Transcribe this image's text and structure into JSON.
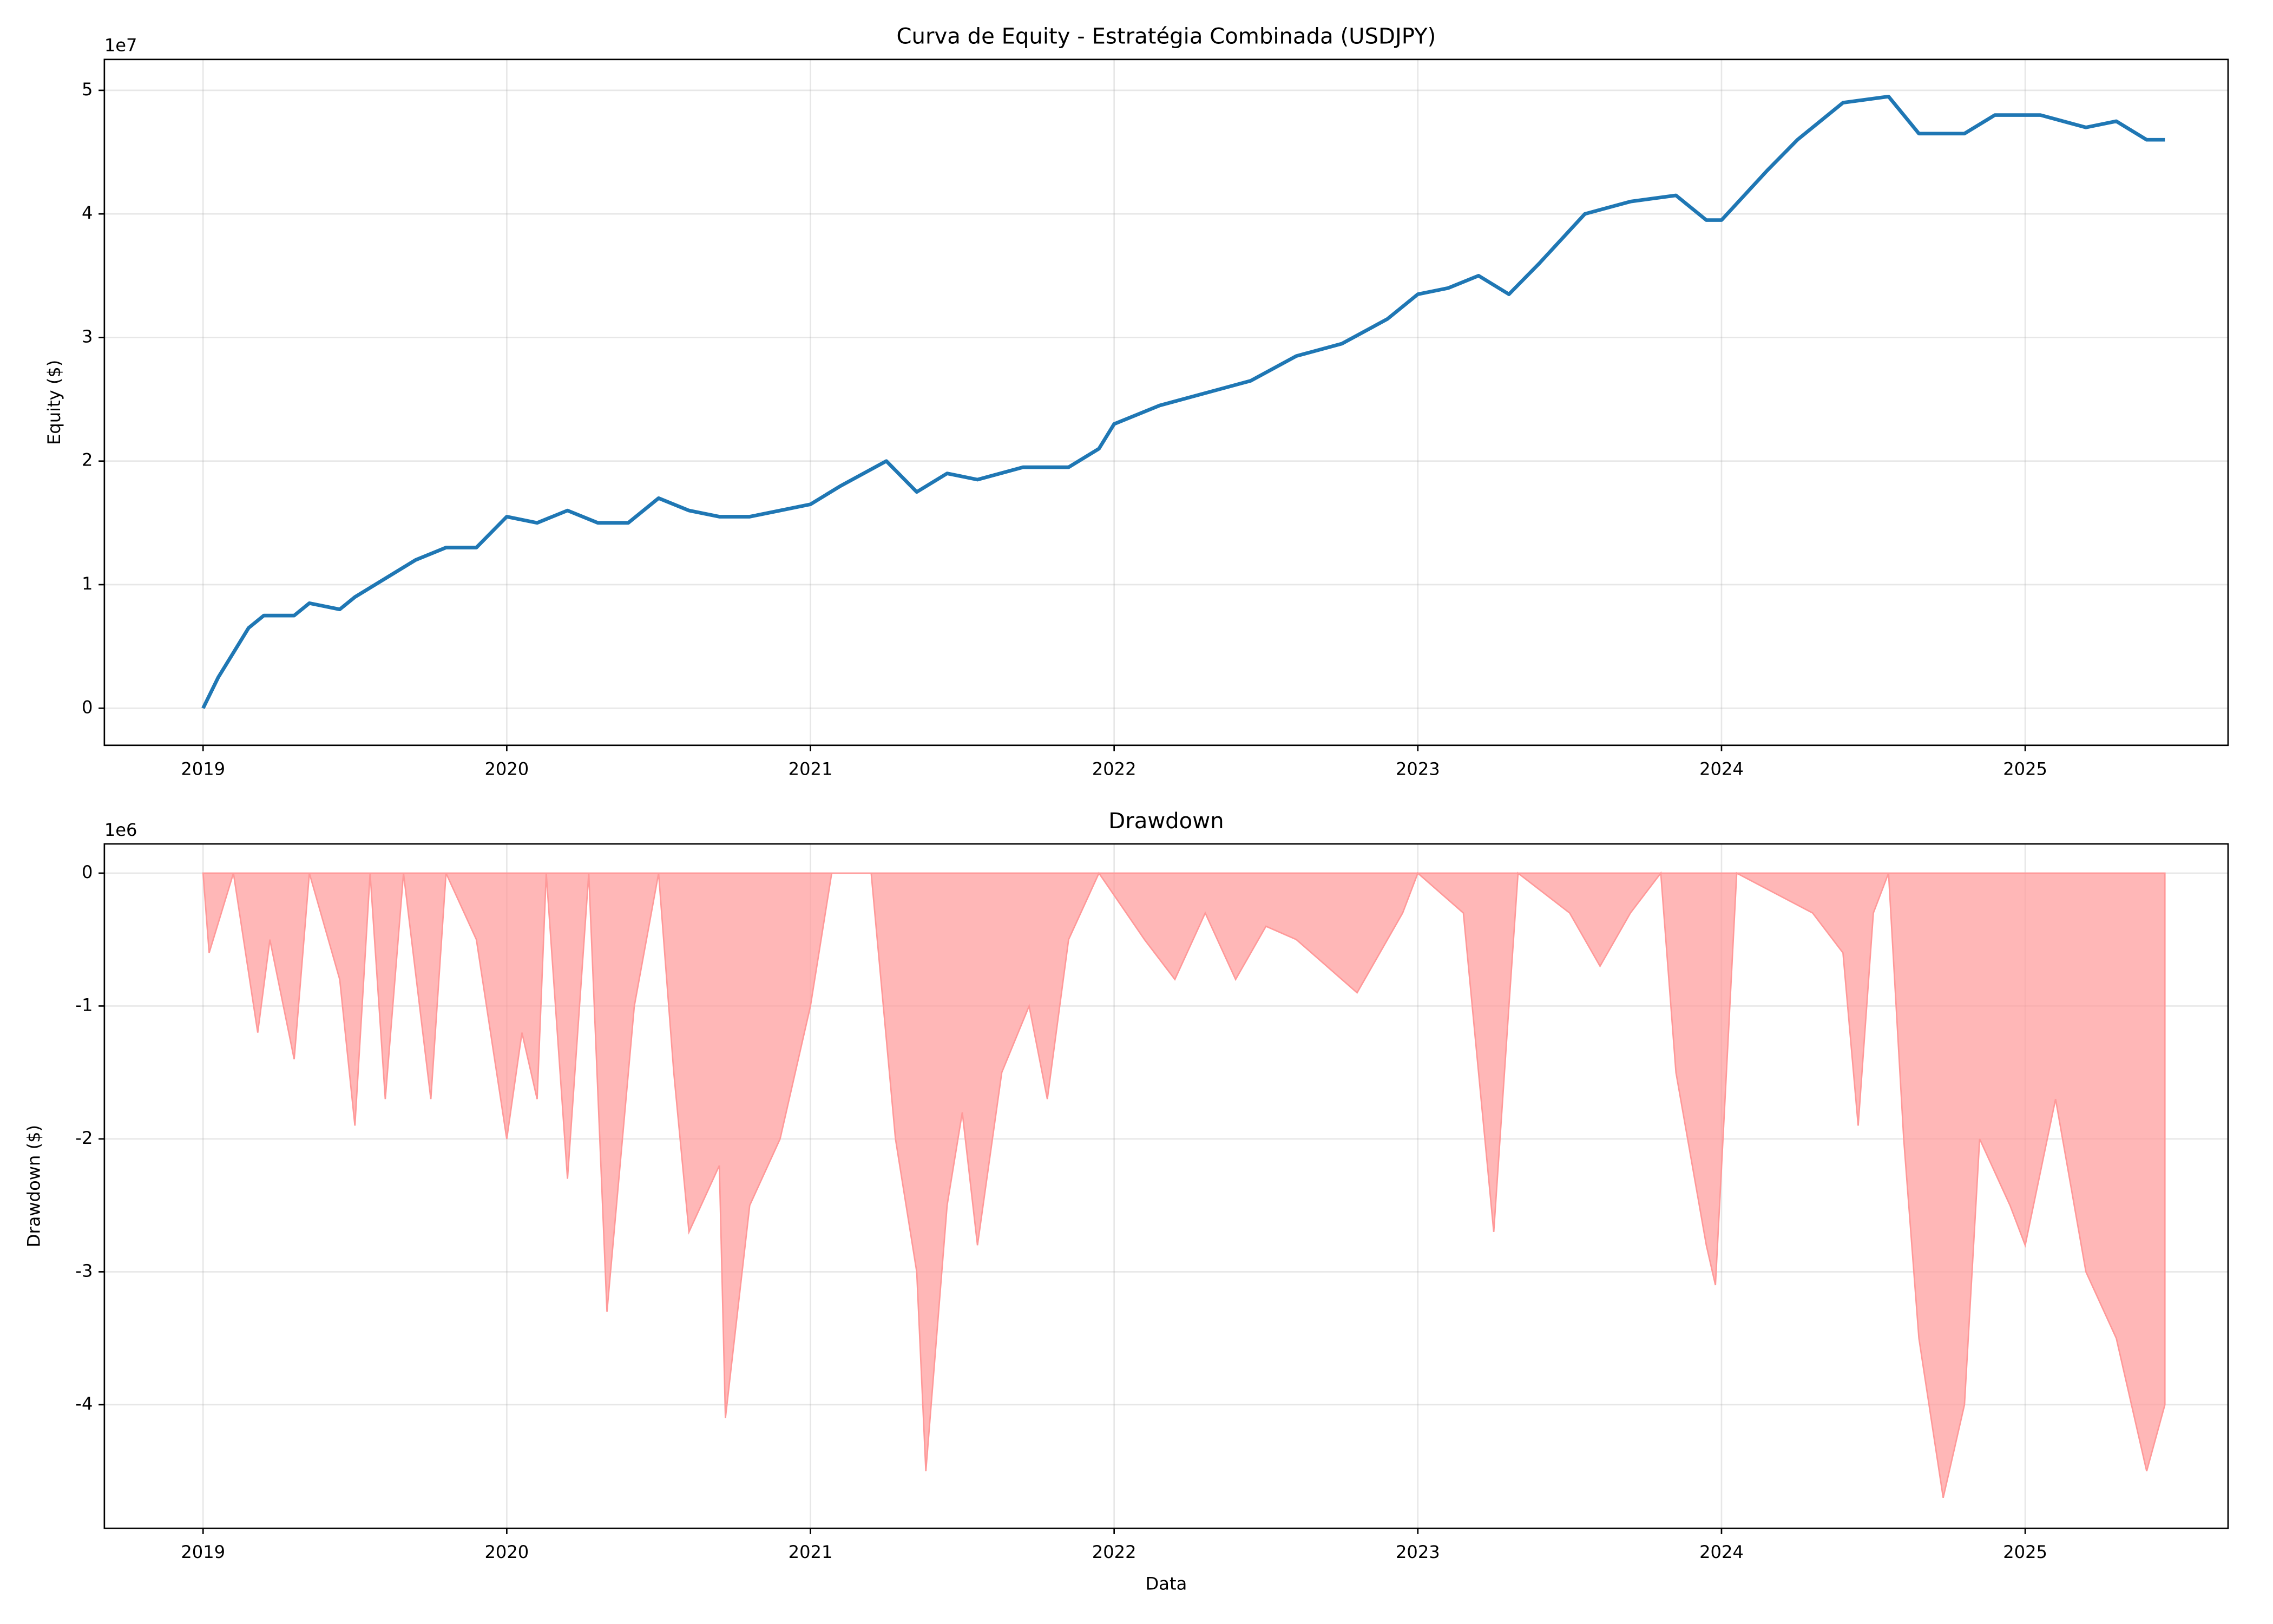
{
  "chart_data": [
    {
      "type": "line",
      "title": "Curva de Equity - Estratégia Combinada (USDJPY)",
      "ylabel": "Equity ($)",
      "offset_label": "1e7",
      "x": [
        2019.0,
        2019.05,
        2019.1,
        2019.15,
        2019.2,
        2019.3,
        2019.35,
        2019.45,
        2019.5,
        2019.6,
        2019.7,
        2019.8,
        2019.9,
        2020.0,
        2020.1,
        2020.2,
        2020.3,
        2020.4,
        2020.5,
        2020.6,
        2020.7,
        2020.8,
        2020.9,
        2021.0,
        2021.1,
        2021.25,
        2021.35,
        2021.45,
        2021.55,
        2021.7,
        2021.85,
        2021.95,
        2022.0,
        2022.15,
        2022.3,
        2022.45,
        2022.6,
        2022.75,
        2022.9,
        2023.0,
        2023.1,
        2023.2,
        2023.3,
        2023.4,
        2023.55,
        2023.7,
        2023.85,
        2023.95,
        2024.0,
        2024.15,
        2024.25,
        2024.4,
        2024.55,
        2024.65,
        2024.8,
        2024.9,
        2025.05,
        2025.2,
        2025.3,
        2025.4,
        2025.46
      ],
      "values": [
        0,
        0.25,
        0.45,
        0.65,
        0.75,
        0.75,
        0.85,
        0.8,
        0.9,
        1.05,
        1.2,
        1.3,
        1.3,
        1.55,
        1.5,
        1.6,
        1.5,
        1.5,
        1.7,
        1.6,
        1.55,
        1.55,
        1.6,
        1.65,
        1.8,
        2.0,
        1.75,
        1.9,
        1.85,
        1.95,
        1.95,
        2.1,
        2.3,
        2.45,
        2.55,
        2.65,
        2.85,
        2.95,
        3.15,
        3.35,
        3.4,
        3.5,
        3.35,
        3.6,
        4.0,
        4.1,
        4.15,
        3.95,
        3.95,
        4.35,
        4.6,
        4.9,
        4.95,
        4.65,
        4.65,
        4.8,
        4.8,
        4.7,
        4.75,
        4.6,
        4.6
      ],
      "color": "#1f77b4",
      "xlim": [
        2018.675,
        2025.668
      ],
      "xticks": [
        2019,
        2020,
        2021,
        2022,
        2023,
        2024,
        2025
      ],
      "ylim": [
        -0.3,
        5.25
      ],
      "yticks": [
        0,
        1,
        2,
        3,
        4,
        5
      ],
      "grid": true
    },
    {
      "type": "area",
      "title": "Drawdown",
      "ylabel": "Drawdown ($)",
      "xlabel": "Data",
      "offset_label": "1e6",
      "x": [
        2019.0,
        2019.02,
        2019.1,
        2019.18,
        2019.22,
        2019.3,
        2019.35,
        2019.45,
        2019.5,
        2019.55,
        2019.6,
        2019.66,
        2019.75,
        2019.8,
        2019.9,
        2020.0,
        2020.05,
        2020.1,
        2020.13,
        2020.2,
        2020.27,
        2020.33,
        2020.42,
        2020.5,
        2020.55,
        2020.6,
        2020.7,
        2020.72,
        2020.8,
        2020.9,
        2021.0,
        2021.07,
        2021.2,
        2021.28,
        2021.35,
        2021.38,
        2021.45,
        2021.5,
        2021.55,
        2021.63,
        2021.72,
        2021.78,
        2021.85,
        2021.95,
        2022.1,
        2022.2,
        2022.3,
        2022.4,
        2022.5,
        2022.6,
        2022.8,
        2022.95,
        2023.0,
        2023.15,
        2023.2,
        2023.25,
        2023.3,
        2023.33,
        2023.5,
        2023.6,
        2023.7,
        2023.8,
        2023.85,
        2023.95,
        2023.98,
        2024.05,
        2024.3,
        2024.4,
        2024.45,
        2024.5,
        2024.55,
        2024.6,
        2024.65,
        2024.73,
        2024.8,
        2024.85,
        2024.95,
        2025.0,
        2025.1,
        2025.2,
        2025.3,
        2025.35,
        2025.4,
        2025.46
      ],
      "values": [
        0,
        -0.6,
        0,
        -1.2,
        -0.5,
        -1.4,
        0,
        -0.8,
        -1.9,
        0,
        -1.7,
        0,
        -1.7,
        0,
        -0.5,
        -2.0,
        -1.2,
        -1.7,
        0,
        -2.3,
        0,
        -3.3,
        -1.0,
        0,
        -1.5,
        -2.7,
        -2.2,
        -4.1,
        -2.5,
        -2.0,
        -1.0,
        0,
        0,
        -2.0,
        -3.0,
        -4.5,
        -2.5,
        -1.8,
        -2.8,
        -1.5,
        -1.0,
        -1.7,
        -0.5,
        0,
        -0.5,
        -0.8,
        -0.3,
        -0.8,
        -0.4,
        -0.5,
        -0.9,
        -0.3,
        0,
        -0.3,
        -1.5,
        -2.7,
        -1.0,
        0,
        -0.3,
        -0.7,
        -0.3,
        0,
        -1.5,
        -2.8,
        -3.1,
        0,
        -0.3,
        -0.6,
        -1.9,
        -0.3,
        0,
        -2.0,
        -3.5,
        -4.7,
        -4.0,
        -2.0,
        -2.5,
        -2.8,
        -1.7,
        -3.0,
        -3.5,
        -4.0,
        -4.5,
        -4.0
      ],
      "color": "#ff9999",
      "xlim": [
        2018.675,
        2025.668
      ],
      "xticks": [
        2019,
        2020,
        2021,
        2022,
        2023,
        2024,
        2025
      ],
      "ylim": [
        -4.93,
        0.22
      ],
      "yticks": [
        -4,
        -3,
        -2,
        -1,
        0
      ],
      "grid": true
    }
  ]
}
